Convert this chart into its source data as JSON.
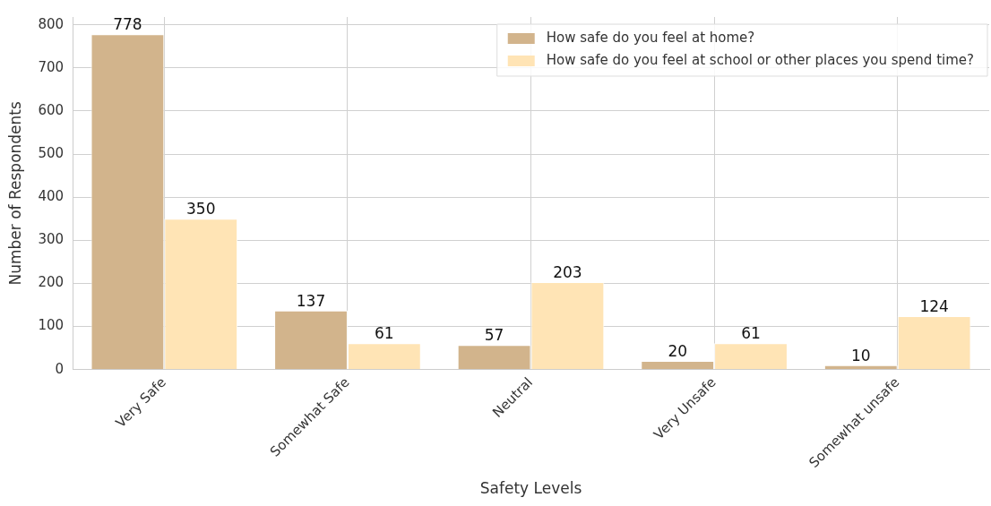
{
  "chart_data": {
    "type": "bar",
    "xlabel": "Safety Levels",
    "ylabel": "Number of Respondents",
    "categories": [
      "Very Safe",
      "Somewhat Safe",
      "Neutral",
      "Very Unsafe",
      "Somewhat unsafe"
    ],
    "series": [
      {
        "name": "How safe do you feel at home?",
        "color": "#d2b48c",
        "values": [
          778,
          137,
          57,
          20,
          10
        ]
      },
      {
        "name": "How safe do you feel at school or other places you spend time?",
        "color": "#ffe4b5",
        "values": [
          350,
          61,
          203,
          61,
          124
        ]
      }
    ],
    "ylim": [
      0,
      818
    ],
    "yticks": [
      0,
      100,
      200,
      300,
      400,
      500,
      600,
      700,
      800
    ],
    "grid": true,
    "legend": "top right",
    "data_labels": true
  }
}
